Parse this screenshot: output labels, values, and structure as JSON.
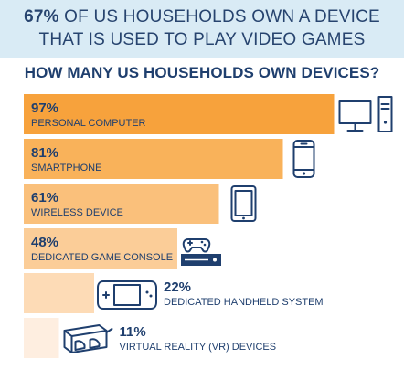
{
  "header": {
    "highlight": "67%",
    "line1_rest": " OF US HOUSEHOLDS OWN A DEVICE",
    "line2": "THAT IS USED TO PLAY VIDEO GAMES"
  },
  "chart_data": {
    "type": "bar",
    "title": "HOW MANY US HOUSEHOLDS OWN DEVICES?",
    "xlim": [
      0,
      100
    ],
    "grid": false,
    "categories": [
      "PERSONAL COMPUTER",
      "SMARTPHONE",
      "WIRELESS DEVICE",
      "DEDICATED GAME CONSOLE",
      "DEDICATED HANDHELD SYSTEM",
      "VIRTUAL REALITY (VR) DEVICES"
    ],
    "values": [
      97,
      81,
      61,
      48,
      22,
      11
    ],
    "value_labels": [
      "97%",
      "81%",
      "61%",
      "48%",
      "22%",
      "11%"
    ],
    "icons": [
      "desktop-computer-icon",
      "smartphone-icon",
      "tablet-icon",
      "game-console-icon",
      "handheld-console-icon",
      "vr-headset-icon"
    ],
    "colors": [
      "#f7a23c",
      "#f9b25a",
      "#fac07b",
      "#fbcd98",
      "#fddbb6",
      "#feeee0"
    ]
  }
}
